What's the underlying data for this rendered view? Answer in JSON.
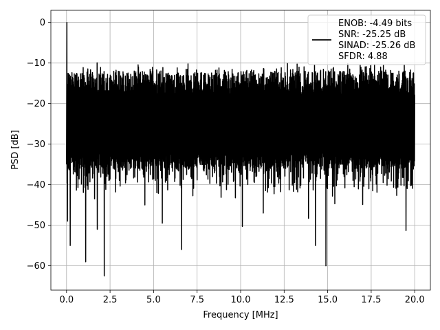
{
  "chart_data": {
    "type": "line",
    "title": "",
    "xlabel": "Frequency [MHz]",
    "ylabel": "PSD [dB]",
    "xlim": [
      -0.9,
      20.9
    ],
    "ylim": [
      -66,
      3
    ],
    "xticks": [
      0.0,
      2.5,
      5.0,
      7.5,
      10.0,
      12.5,
      15.0,
      17.5,
      20.0
    ],
    "xtick_labels": [
      "0.0",
      "2.5",
      "5.0",
      "7.5",
      "10.0",
      "12.5",
      "15.0",
      "17.5",
      "20.0"
    ],
    "yticks": [
      0,
      -10,
      -20,
      -30,
      -40,
      -50,
      -60
    ],
    "ytick_labels": [
      "0",
      "−10",
      "−20",
      "−30",
      "−40",
      "−50",
      "−60"
    ],
    "grid": true,
    "legend_position": "top-right",
    "series": [
      {
        "name": "ENOB: -4.49 bits\nSNR: -25.25 dB\nSINAD: -25.26 dB\nSFDR: 4.88",
        "color": "#000000",
        "description": "dense noisy power spectral density trace",
        "x_range": [
          0,
          20
        ],
        "peak": {
          "x": 0.02,
          "y": 0
        },
        "upper_envelope_db": -12,
        "lower_envelope_db": -36,
        "deep_dips": [
          {
            "x": 0.05,
            "y": -49
          },
          {
            "x": 0.2,
            "y": -55
          },
          {
            "x": 1.1,
            "y": -59
          },
          {
            "x": 1.75,
            "y": -51
          },
          {
            "x": 2.15,
            "y": -62.5
          },
          {
            "x": 4.5,
            "y": -45
          },
          {
            "x": 5.5,
            "y": -49.5
          },
          {
            "x": 6.6,
            "y": -56
          },
          {
            "x": 10.1,
            "y": -50.3
          },
          {
            "x": 11.3,
            "y": -47
          },
          {
            "x": 13.9,
            "y": -48.3
          },
          {
            "x": 14.3,
            "y": -55
          },
          {
            "x": 14.9,
            "y": -60
          },
          {
            "x": 15.4,
            "y": -44.7
          },
          {
            "x": 17.0,
            "y": -44.9
          },
          {
            "x": 19.5,
            "y": -51.3
          }
        ]
      }
    ]
  }
}
